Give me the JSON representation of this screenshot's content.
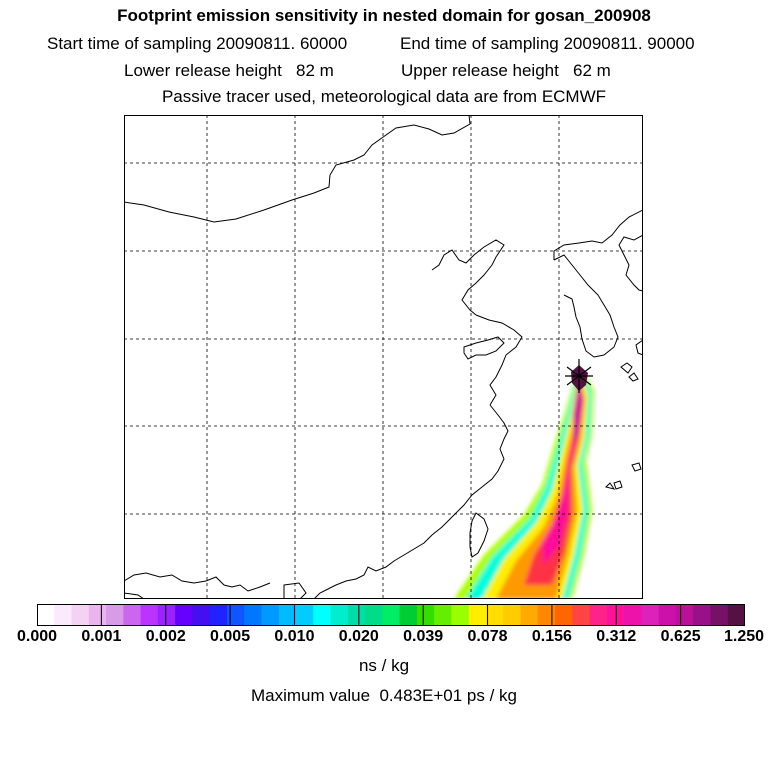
{
  "header": {
    "title": "Footprint emission sensitivity in nested domain for gosan_200908",
    "start_sampling": "Start time of sampling 20090811. 60000",
    "end_sampling": "End time of sampling 20090811. 90000",
    "lower_release": "Lower release height   82 m",
    "upper_release": "Upper release height   62 m",
    "tracer_note": "Passive tracer used, meteorological data are from ECMWF"
  },
  "colorbar": {
    "tick_labels": [
      "0.000",
      "0.001",
      "0.002",
      "0.005",
      "0.010",
      "0.020",
      "0.039",
      "0.078",
      "0.156",
      "0.312",
      "0.625",
      "1.250"
    ],
    "colors": [
      "#ffffff",
      "#fbeafb",
      "#f4d2f4",
      "#eab5ef",
      "#d79be8",
      "#cc66ee",
      "#bb33ff",
      "#9922ff",
      "#6600ff",
      "#4411ee",
      "#2222ff",
      "#1155ff",
      "#0077ff",
      "#0099ff",
      "#00bbff",
      "#00ccff",
      "#00ffff",
      "#00eecc",
      "#00ddaa",
      "#00dd88",
      "#00ee66",
      "#00cc33",
      "#33dd00",
      "#66ee00",
      "#99ff00",
      "#ffee00",
      "#ffdd00",
      "#ffcc00",
      "#ffaa00",
      "#ff8800",
      "#ff6600",
      "#ff4444",
      "#ff2288",
      "#ff1199",
      "#ee11aa",
      "#dd22bb",
      "#cc11aa",
      "#bb1199",
      "#991188",
      "#771166",
      "#551144"
    ],
    "units": "ns / kg"
  },
  "footer": {
    "max_value": "Maximum value  0.483E+01 ps / kg"
  },
  "map": {
    "receptor": "gosan",
    "plume_colors": {
      "outer": "#aaff00",
      "cyan": "#00ffdd",
      "yellow": "#ffee00",
      "orange": "#ff9900",
      "red": "#ff3344",
      "pink": "#ff1199",
      "magenta": "#cc1199",
      "core": "#551144"
    }
  }
}
